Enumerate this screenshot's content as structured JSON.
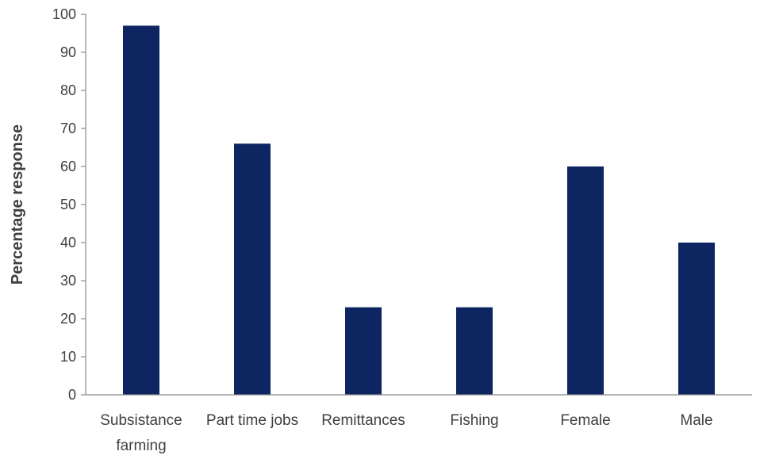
{
  "chart_data": {
    "type": "bar",
    "categories": [
      "Subsistance farming",
      "Part time jobs",
      "Remittances",
      "Fishing",
      "Female",
      "Male"
    ],
    "category_lines": [
      [
        "Subsistance",
        "farming"
      ],
      [
        "Part time jobs"
      ],
      [
        "Remittances"
      ],
      [
        "Fishing"
      ],
      [
        "Female"
      ],
      [
        "Male"
      ]
    ],
    "values": [
      97,
      66,
      23,
      23,
      60,
      40
    ],
    "title": "",
    "xlabel": "",
    "ylabel": "Percentage response",
    "ylim": [
      0,
      100
    ],
    "yticks": [
      0,
      10,
      20,
      30,
      40,
      50,
      60,
      70,
      80,
      90,
      100
    ],
    "grid": false,
    "legend": "none",
    "bar_color": "#0d2560",
    "axis_color": "#888888",
    "text_color": "#404040"
  }
}
